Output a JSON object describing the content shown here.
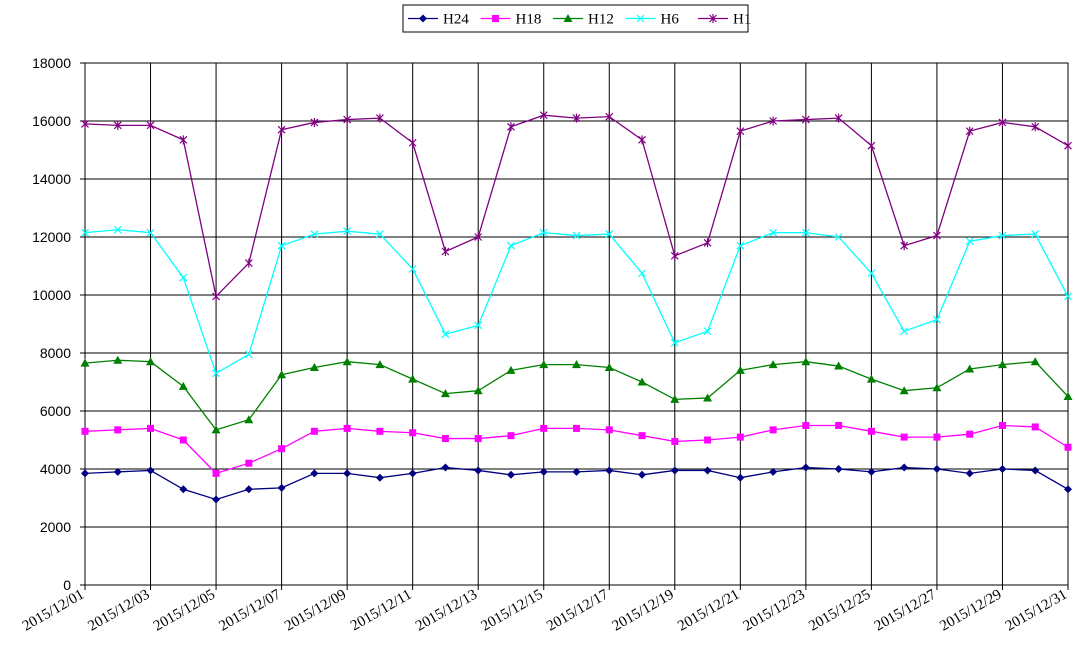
{
  "chart_data": {
    "type": "line",
    "categories": [
      "2015/12/01",
      null,
      "2015/12/03",
      null,
      "2015/12/05",
      null,
      "2015/12/07",
      null,
      "2015/12/09",
      null,
      "2015/12/11",
      null,
      "2015/12/13",
      null,
      "2015/12/15",
      null,
      "2015/12/17",
      null,
      "2015/12/19",
      null,
      "2015/12/21",
      null,
      "2015/12/23",
      null,
      "2015/12/25",
      null,
      "2015/12/27",
      null,
      "2015/12/29",
      null,
      "2015/12/31"
    ],
    "series": [
      {
        "name": "H24",
        "color": "#000080",
        "marker": "diamond",
        "values": [
          3850,
          3900,
          3950,
          3300,
          2950,
          3300,
          3350,
          3850,
          3850,
          3700,
          3850,
          4050,
          3950,
          3800,
          3900,
          3900,
          3950,
          3800,
          3950,
          3950,
          3700,
          3900,
          4050,
          4000,
          3900,
          4050,
          4000,
          3850,
          4000,
          3950,
          3300
        ]
      },
      {
        "name": "H18",
        "color": "#ff00ff",
        "marker": "square",
        "values": [
          5300,
          5350,
          5400,
          5000,
          3850,
          4200,
          4700,
          5300,
          5400,
          5300,
          5250,
          5050,
          5050,
          5150,
          5400,
          5400,
          5350,
          5150,
          4950,
          5000,
          5100,
          5350,
          5500,
          5500,
          5300,
          5100,
          5100,
          5200,
          5500,
          5450,
          4750
        ]
      },
      {
        "name": "H12",
        "color": "#008000",
        "marker": "triangle",
        "values": [
          7650,
          7750,
          7700,
          6850,
          5350,
          5700,
          7250,
          7500,
          7700,
          7600,
          7100,
          6600,
          6700,
          7400,
          7600,
          7600,
          7500,
          7000,
          6400,
          6450,
          7400,
          7600,
          7700,
          7550,
          7100,
          6700,
          6800,
          7450,
          7600,
          7700,
          6500
        ]
      },
      {
        "name": "H6",
        "color": "#00ffff",
        "marker": "x",
        "values": [
          12150,
          12250,
          12150,
          10600,
          7300,
          7950,
          11700,
          12100,
          12200,
          12100,
          10900,
          8650,
          8950,
          11700,
          12150,
          12050,
          12100,
          10750,
          8350,
          8750,
          11700,
          12150,
          12150,
          12000,
          10750,
          8750,
          9150,
          11850,
          12050,
          12100,
          9950
        ]
      },
      {
        "name": "H1",
        "color": "#800080",
        "marker": "star",
        "values": [
          15900,
          15850,
          15850,
          15350,
          9950,
          11100,
          15700,
          15950,
          16050,
          16100,
          15250,
          11500,
          12000,
          15800,
          16200,
          16100,
          16150,
          15350,
          11350,
          11800,
          15650,
          16000,
          16050,
          16100,
          15150,
          11700,
          12050,
          15650,
          15950,
          15800,
          15150
        ]
      }
    ],
    "ylim": [
      0,
      18000
    ],
    "yticks": [
      0,
      2000,
      4000,
      6000,
      8000,
      10000,
      12000,
      14000,
      16000,
      18000
    ],
    "grid": true,
    "legend": "top"
  }
}
